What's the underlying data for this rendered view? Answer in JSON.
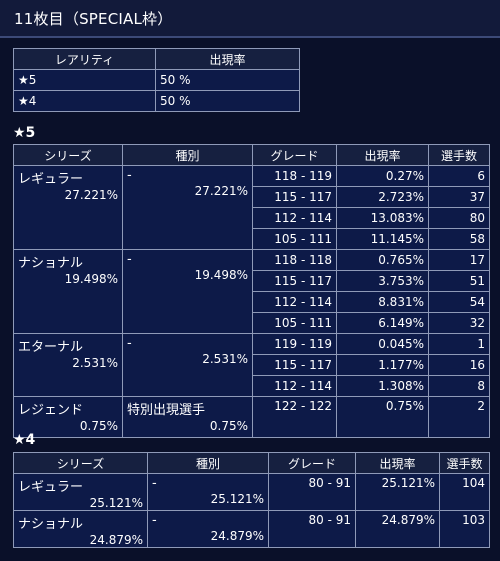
{
  "header": {
    "title": "11枚目（SPECIAL枠）"
  },
  "rarity_table": {
    "headers": [
      "レアリティ",
      "出現率"
    ],
    "rows": [
      {
        "rarity": "★5",
        "rate": "50 %"
      },
      {
        "rarity": "★4",
        "rate": "50 %"
      }
    ]
  },
  "section5": {
    "title": "★5",
    "headers": [
      "シリーズ",
      "種別",
      "グレード",
      "出現率",
      "選手数"
    ],
    "groups": [
      {
        "series": "レギュラー",
        "series_pct": "27.221%",
        "kind": "-",
        "kind_pct": "27.221%",
        "rows": [
          {
            "grade": "118 - 119",
            "rate": "0.27%",
            "count": "6"
          },
          {
            "grade": "115 - 117",
            "rate": "2.723%",
            "count": "37"
          },
          {
            "grade": "112 - 114",
            "rate": "13.083%",
            "count": "80"
          },
          {
            "grade": "105 - 111",
            "rate": "11.145%",
            "count": "58"
          }
        ]
      },
      {
        "series": "ナショナル",
        "series_pct": "19.498%",
        "kind": "-",
        "kind_pct": "19.498%",
        "rows": [
          {
            "grade": "118 - 118",
            "rate": "0.765%",
            "count": "17"
          },
          {
            "grade": "115 - 117",
            "rate": "3.753%",
            "count": "51"
          },
          {
            "grade": "112 - 114",
            "rate": "8.831%",
            "count": "54"
          },
          {
            "grade": "105 - 111",
            "rate": "6.149%",
            "count": "32"
          }
        ]
      },
      {
        "series": "エターナル",
        "series_pct": "2.531%",
        "kind": "-",
        "kind_pct": "2.531%",
        "rows": [
          {
            "grade": "119 - 119",
            "rate": "0.045%",
            "count": "1"
          },
          {
            "grade": "115 - 117",
            "rate": "1.177%",
            "count": "16"
          },
          {
            "grade": "112 - 114",
            "rate": "1.308%",
            "count": "8"
          }
        ]
      },
      {
        "series": "レジェンド",
        "series_pct": "0.75%",
        "kind": "特別出現選手",
        "kind_pct": "0.75%",
        "rows": [
          {
            "grade": "122 - 122",
            "rate": "0.75%",
            "count": "2"
          }
        ]
      }
    ]
  },
  "section4": {
    "title": "★4",
    "headers": [
      "シリーズ",
      "種別",
      "グレード",
      "出現率",
      "選手数"
    ],
    "groups": [
      {
        "series": "レギュラー",
        "series_pct": "25.121%",
        "kind": "-",
        "kind_pct": "25.121%",
        "rows": [
          {
            "grade": "80 - 91",
            "rate": "25.121%",
            "count": "104"
          }
        ]
      },
      {
        "series": "ナショナル",
        "series_pct": "24.879%",
        "kind": "-",
        "kind_pct": "24.879%",
        "rows": [
          {
            "grade": "80 - 91",
            "rate": "24.879%",
            "count": "103"
          }
        ]
      }
    ]
  }
}
